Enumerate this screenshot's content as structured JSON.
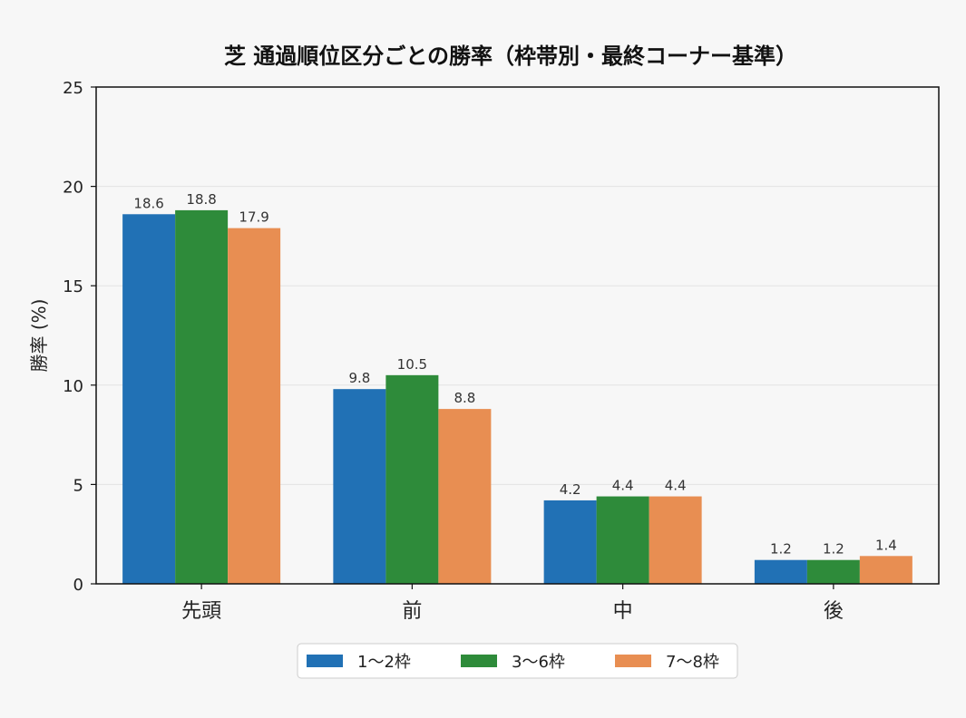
{
  "chart_data": {
    "type": "bar",
    "title": "芝 通過順位区分ごとの勝率（枠帯別・最終コーナー基準）",
    "xlabel": "",
    "ylabel": "勝率 (%)",
    "ylim": [
      0,
      25
    ],
    "yticks": [
      0,
      5,
      10,
      15,
      20,
      25
    ],
    "categories": [
      "先頭",
      "前",
      "中",
      "後"
    ],
    "series": [
      {
        "name": "1〜2枠",
        "color": "#2171b5",
        "values": [
          18.6,
          9.8,
          4.2,
          1.2
        ]
      },
      {
        "name": "3〜6枠",
        "color": "#2e8b3a",
        "values": [
          18.8,
          10.5,
          4.4,
          1.2
        ]
      },
      {
        "name": "7〜8枠",
        "color": "#e88e52",
        "values": [
          17.9,
          8.8,
          4.4,
          1.4
        ]
      }
    ],
    "grid": "horizontal",
    "legend_position": "bottom-center"
  }
}
